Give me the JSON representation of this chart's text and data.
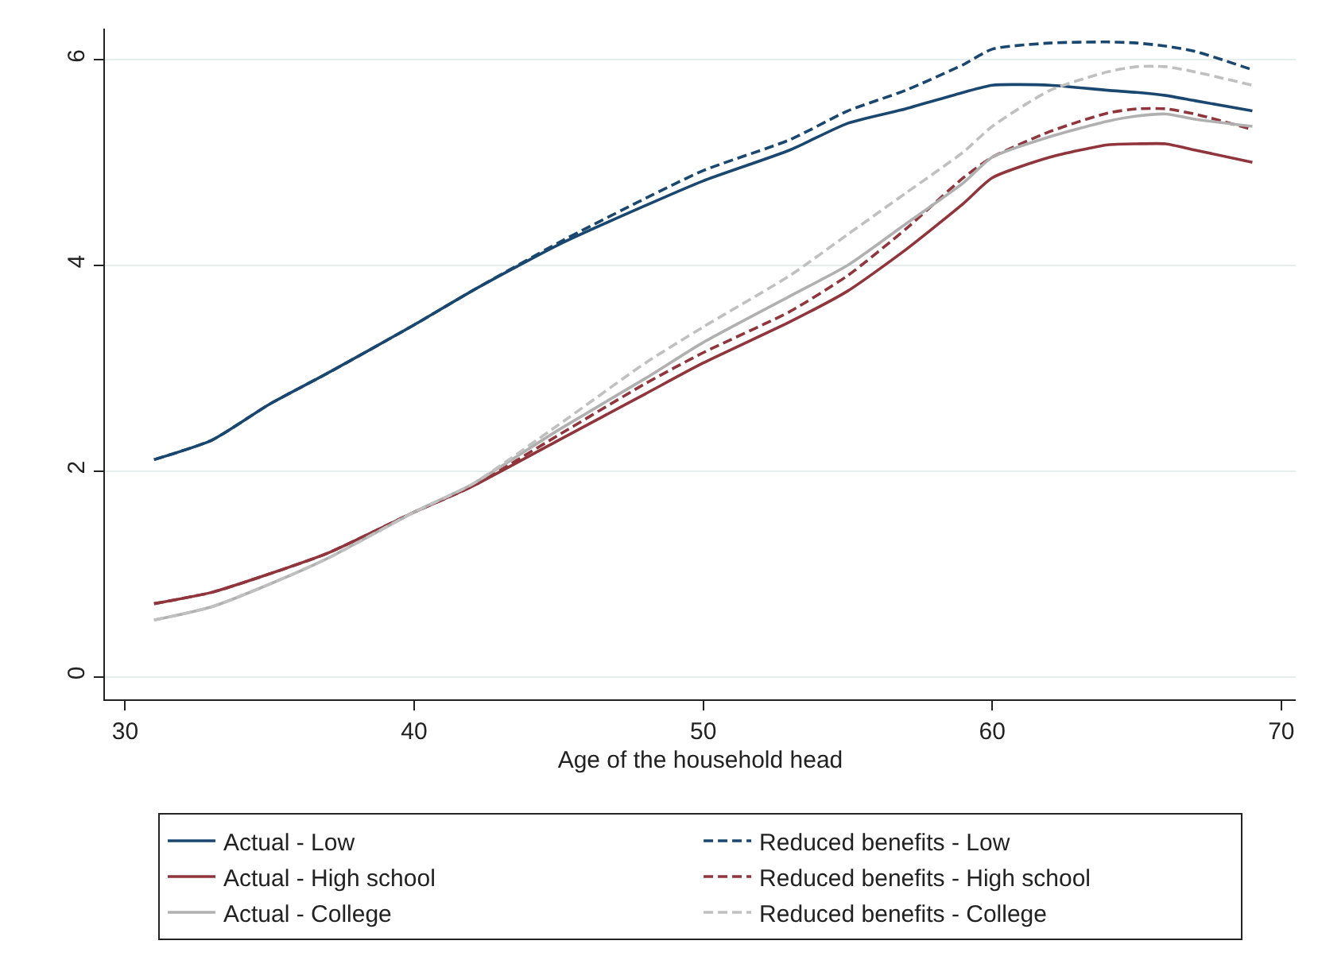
{
  "chart_data": {
    "type": "line",
    "xlabel": "Age of the household head",
    "x": [
      31,
      33,
      35,
      37,
      40,
      42,
      45,
      48,
      50,
      53,
      55,
      57,
      59,
      60,
      62,
      64,
      65,
      66,
      67,
      69
    ],
    "series": [
      {
        "name": "Actual - Low",
        "color": "#1a476f",
        "line_style": "solid",
        "values": [
          2.11,
          2.3,
          2.65,
          2.95,
          3.42,
          3.75,
          4.2,
          4.58,
          4.82,
          5.12,
          5.38,
          5.52,
          5.68,
          5.75,
          5.75,
          5.7,
          5.68,
          5.65,
          5.6,
          5.5
        ]
      },
      {
        "name": "Reduced benefits - Low",
        "color": "#1a476f",
        "line_style": "dashed",
        "values": [
          2.11,
          2.3,
          2.65,
          2.95,
          3.42,
          3.75,
          4.22,
          4.65,
          4.92,
          5.22,
          5.5,
          5.7,
          5.95,
          6.1,
          6.16,
          6.17,
          6.16,
          6.13,
          6.08,
          5.9
        ]
      },
      {
        "name": "Actual - High school",
        "color": "#90353b",
        "line_style": "solid",
        "values": [
          0.71,
          0.82,
          1.0,
          1.2,
          1.6,
          1.85,
          2.3,
          2.75,
          3.05,
          3.45,
          3.75,
          4.15,
          4.6,
          4.85,
          5.05,
          5.17,
          5.18,
          5.18,
          5.12,
          5.0
        ]
      },
      {
        "name": "Reduced benefits - High school",
        "color": "#90353b",
        "line_style": "dashed",
        "values": [
          0.71,
          0.82,
          1.0,
          1.2,
          1.6,
          1.85,
          2.35,
          2.85,
          3.15,
          3.55,
          3.9,
          4.35,
          4.85,
          5.05,
          5.3,
          5.48,
          5.52,
          5.52,
          5.47,
          5.32
        ]
      },
      {
        "name": "Actual - College",
        "color": "#b0b0b0",
        "line_style": "solid",
        "values": [
          0.55,
          0.68,
          0.9,
          1.15,
          1.6,
          1.87,
          2.4,
          2.9,
          3.25,
          3.7,
          4.0,
          4.4,
          4.8,
          5.05,
          5.25,
          5.4,
          5.45,
          5.47,
          5.42,
          5.35
        ]
      },
      {
        "name": "Reduced benefits - College",
        "color": "#c0c0c0",
        "line_style": "dashed",
        "values": [
          0.55,
          0.68,
          0.9,
          1.15,
          1.6,
          1.87,
          2.45,
          3.05,
          3.4,
          3.9,
          4.3,
          4.7,
          5.1,
          5.35,
          5.7,
          5.88,
          5.93,
          5.93,
          5.88,
          5.75
        ]
      }
    ],
    "xlim": [
      29.3,
      70.5
    ],
    "xticks": [
      30,
      40,
      50,
      60,
      70
    ],
    "ylim": [
      -0.22,
      6.3
    ],
    "yticks": [
      0,
      2,
      4,
      6
    ],
    "grid": "y",
    "legend": "bottom"
  }
}
